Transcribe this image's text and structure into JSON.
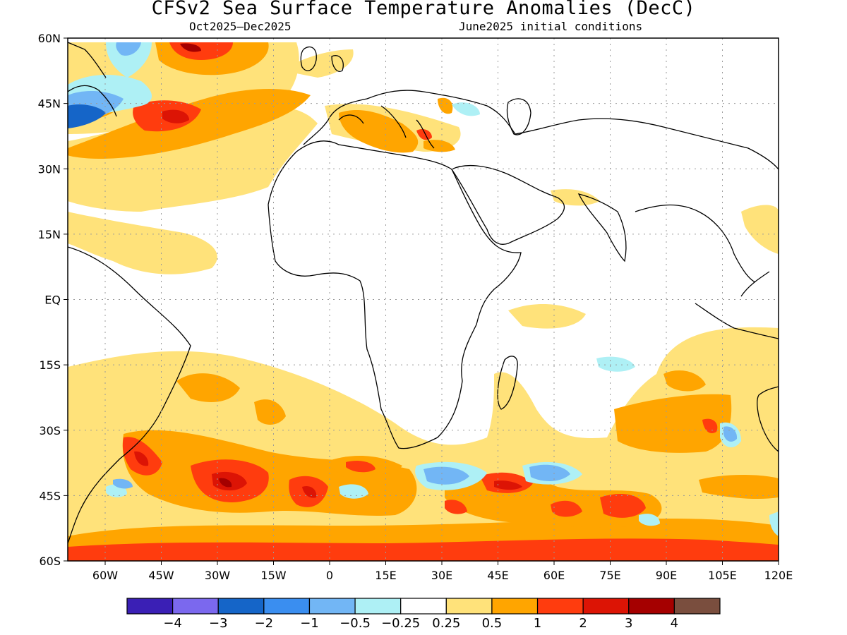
{
  "title": "CFSv2 Sea Surface Temperature Anomalies (DecC)",
  "subtitle_left": "Oct2025–Dec2025",
  "subtitle_right": "June2025 initial conditions",
  "map": {
    "lon_range": [
      -70,
      120
    ],
    "lat_range": [
      -60,
      60
    ],
    "lat_ticks": [
      {
        "value": 60,
        "label": "60N"
      },
      {
        "value": 45,
        "label": "45N"
      },
      {
        "value": 30,
        "label": "30N"
      },
      {
        "value": 15,
        "label": "15N"
      },
      {
        "value": 0,
        "label": "EQ"
      },
      {
        "value": -15,
        "label": "15S"
      },
      {
        "value": -30,
        "label": "30S"
      },
      {
        "value": -45,
        "label": "45S"
      },
      {
        "value": -60,
        "label": "60S"
      }
    ],
    "lon_ticks": [
      {
        "value": -60,
        "label": "60W"
      },
      {
        "value": -45,
        "label": "45W"
      },
      {
        "value": -30,
        "label": "30W"
      },
      {
        "value": -15,
        "label": "15W"
      },
      {
        "value": 0,
        "label": "0"
      },
      {
        "value": 15,
        "label": "15E"
      },
      {
        "value": 30,
        "label": "30E"
      },
      {
        "value": 45,
        "label": "45E"
      },
      {
        "value": 60,
        "label": "60E"
      },
      {
        "value": 75,
        "label": "75E"
      },
      {
        "value": 90,
        "label": "90E"
      },
      {
        "value": 105,
        "label": "105E"
      },
      {
        "value": 120,
        "label": "120E"
      }
    ],
    "grid": true
  },
  "colorbar": {
    "colors": [
      "#3a1fb5",
      "#7b68ee",
      "#1565c8",
      "#3a8ef0",
      "#72b6f5",
      "#aef0f5",
      "#ffffff",
      "#ffe27a",
      "#ffa500",
      "#ff3c0e",
      "#dc1405",
      "#a50000",
      "#7a4e3e"
    ],
    "labels": [
      "−4",
      "−3",
      "−2",
      "−1",
      "−0.5",
      "−0.25",
      "0.25",
      "0.5",
      "1",
      "2",
      "3",
      "4"
    ]
  }
}
